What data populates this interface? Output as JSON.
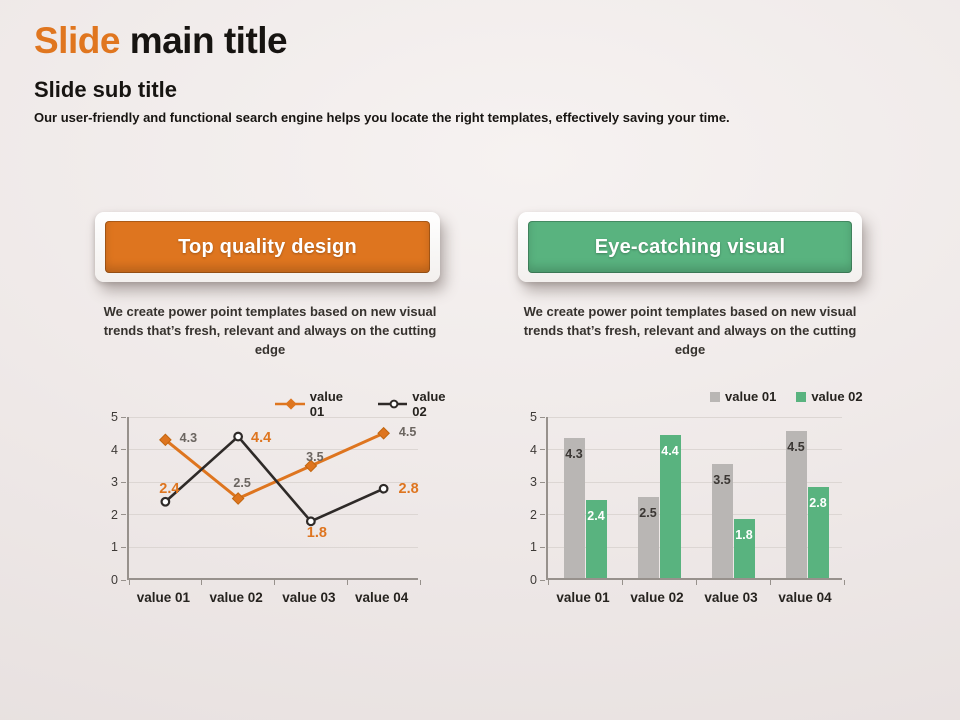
{
  "slide": {
    "title_accent": "Slide",
    "title_rest": " main title",
    "subtitle": "Slide sub title",
    "description": "Our user-friendly and functional search engine helps you locate the right templates, effectively saving your time."
  },
  "colors": {
    "orange": "#de751f",
    "green": "#59b37f",
    "gray_bar": "#b9b6b4",
    "black_line": "#2e2a28",
    "grid": "#dcd6d3",
    "axis": "#97918c",
    "tick_text": "#3e3a37",
    "category_text": "#26231f",
    "gray_label": "#6b6560",
    "background": "#eee8e7"
  },
  "columns": [
    {
      "banner_label": "Top quality design",
      "description": "We create power point templates based on new visual trends that’s fresh, relevant and always on the cutting edge"
    },
    {
      "banner_label": "Eye-catching visual",
      "description": "We create power point templates based on new visual trends that’s fresh, relevant and always on the cutting edge"
    }
  ],
  "chart_data": [
    {
      "type": "line",
      "title": "",
      "categories": [
        "value 01",
        "value 02",
        "value 03",
        "value 04"
      ],
      "series": [
        {
          "name": "value 01",
          "values": [
            4.3,
            2.5,
            3.5,
            4.5
          ],
          "color": "#de751f",
          "marker": "diamond",
          "label_color": "#6b6560"
        },
        {
          "name": "value 02",
          "values": [
            2.4,
            4.4,
            1.8,
            2.8
          ],
          "color": "#2e2a28",
          "marker": "open-circle",
          "label_color": "#de751f"
        }
      ],
      "xlabel": "",
      "ylabel": "",
      "ylim": [
        0,
        5
      ],
      "yticks": [
        0,
        1,
        2,
        3,
        4,
        5
      ],
      "grid": true,
      "legend_position": "top-right"
    },
    {
      "type": "bar",
      "title": "",
      "categories": [
        "value 01",
        "value 02",
        "value 03",
        "value 04"
      ],
      "series": [
        {
          "name": "value 01",
          "values": [
            4.3,
            2.5,
            3.5,
            4.5
          ],
          "color": "#b9b6b4",
          "label_color": "#3b3734"
        },
        {
          "name": "value 02",
          "values": [
            2.4,
            4.4,
            1.8,
            2.8
          ],
          "color": "#59b37f",
          "label_color": "#ffffff"
        }
      ],
      "xlabel": "",
      "ylabel": "",
      "ylim": [
        0,
        5
      ],
      "yticks": [
        0,
        1,
        2,
        3,
        4,
        5
      ],
      "grid": true,
      "legend_position": "top-right"
    }
  ]
}
